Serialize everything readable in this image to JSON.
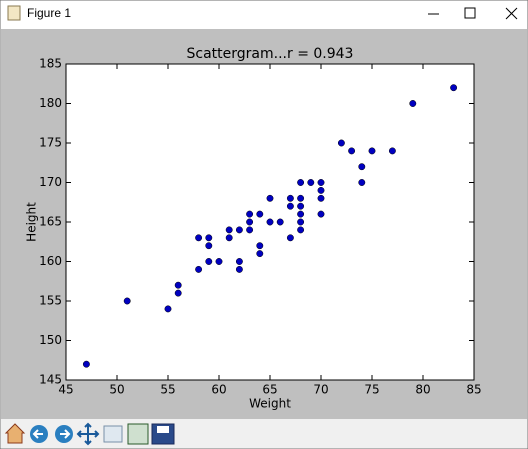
{
  "window": {
    "title": "Figure 1"
  },
  "chart_data": {
    "type": "scatter",
    "title": "Scattergram...r =  0.943",
    "x_label": "Weight",
    "y_label": "Height",
    "x": [
      47,
      51,
      55,
      56,
      56,
      58,
      58,
      59,
      59,
      59,
      60,
      61,
      61,
      62,
      62,
      62,
      63,
      63,
      63,
      64,
      64,
      64,
      65,
      65,
      66,
      67,
      67,
      67,
      68,
      68,
      68,
      68,
      68,
      68,
      69,
      70,
      70,
      70,
      70,
      72,
      73,
      74,
      74,
      75,
      77,
      79,
      83
    ],
    "y": [
      147,
      155,
      154,
      156,
      157,
      159,
      163,
      160,
      162,
      163,
      160,
      163,
      164,
      159,
      160,
      164,
      164,
      165,
      166,
      161,
      162,
      166,
      165,
      168,
      165,
      163,
      167,
      168,
      164,
      165,
      166,
      167,
      168,
      170,
      170,
      166,
      168,
      169,
      170,
      175,
      174,
      170,
      172,
      174,
      174,
      180,
      182
    ],
    "color": "#0000c0",
    "xlim": [
      45,
      85
    ],
    "xticks": [
      45,
      50,
      55,
      60,
      65,
      70,
      75,
      80,
      85
    ],
    "ylim": [
      145,
      185
    ],
    "yticks": [
      145,
      150,
      155,
      160,
      165,
      170,
      175,
      180,
      185
    ],
    "grid": false
  }
}
